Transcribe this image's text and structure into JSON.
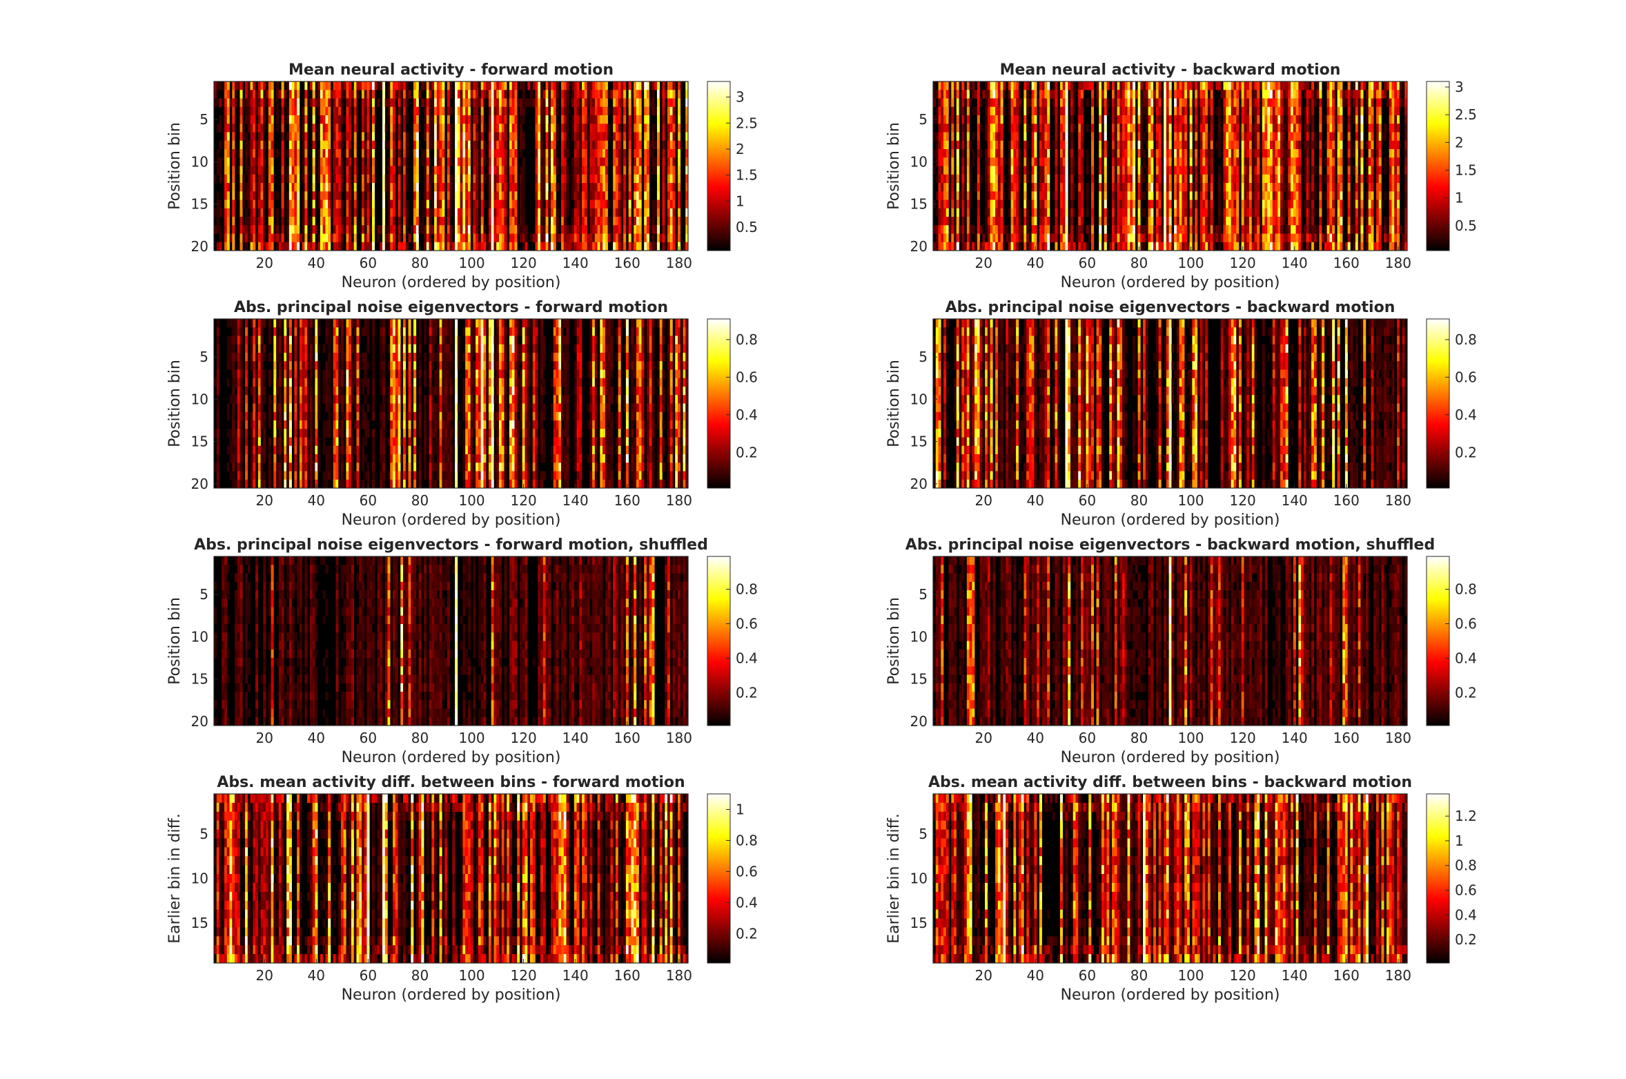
{
  "figure": {
    "colormap": "hot",
    "colormap_stops": [
      "#000000",
      "#ff0000",
      "#ffff00",
      "#ffffff"
    ]
  },
  "chart_data": [
    {
      "type": "heatmap",
      "title": "Mean neural activity - forward motion",
      "xlabel": "Neuron (ordered by position)",
      "ylabel": "Position bin",
      "x_range": [
        1,
        183
      ],
      "y_range": [
        1,
        20
      ],
      "x_ticks": [
        20,
        40,
        60,
        80,
        100,
        120,
        140,
        160,
        180
      ],
      "y_ticks": [
        5,
        10,
        15,
        20
      ],
      "colorbar_range": [
        0.05,
        3.3
      ],
      "colorbar_ticks": [
        0.5,
        1,
        1.5,
        2,
        2.5,
        3
      ],
      "colorbar_labels": [
        "0.5",
        "1",
        "1.5",
        "2",
        "2.5",
        "3"
      ],
      "highlight_columns": [
        94,
        66,
        108
      ],
      "seed": 11,
      "density": 0.55,
      "edge_boost": "both"
    },
    {
      "type": "heatmap",
      "title": "Mean neural activity - backward motion",
      "xlabel": "Neuron (ordered by position)",
      "ylabel": "Position bin",
      "x_range": [
        1,
        183
      ],
      "y_range": [
        1,
        20
      ],
      "x_ticks": [
        20,
        40,
        60,
        80,
        100,
        120,
        140,
        160,
        180
      ],
      "y_ticks": [
        5,
        10,
        15,
        20
      ],
      "colorbar_range": [
        0.05,
        3.1
      ],
      "colorbar_ticks": [
        0.5,
        1,
        1.5,
        2,
        2.5,
        3
      ],
      "colorbar_labels": [
        "0.5",
        "1",
        "1.5",
        "2",
        "2.5",
        "3"
      ],
      "highlight_columns": [
        52,
        90
      ],
      "seed": 23,
      "density": 0.58,
      "edge_boost": "both"
    },
    {
      "type": "heatmap",
      "title": "Abs. principal noise eigenvectors - forward motion",
      "xlabel": "Neuron (ordered by position)",
      "ylabel": "Position bin",
      "x_range": [
        1,
        183
      ],
      "y_range": [
        1,
        20
      ],
      "x_ticks": [
        20,
        40,
        60,
        80,
        100,
        120,
        140,
        160,
        180
      ],
      "y_ticks": [
        5,
        10,
        15,
        20
      ],
      "colorbar_range": [
        0.01,
        0.91
      ],
      "colorbar_ticks": [
        0.2,
        0.4,
        0.6,
        0.8
      ],
      "colorbar_labels": [
        "0.2",
        "0.4",
        "0.6",
        "0.8"
      ],
      "highlight_columns": [
        94,
        108,
        104
      ],
      "seed": 37,
      "density": 0.35,
      "edge_boost": "none"
    },
    {
      "type": "heatmap",
      "title": "Abs. principal noise eigenvectors - backward motion",
      "xlabel": "Neuron (ordered by position)",
      "ylabel": "Position bin",
      "x_range": [
        1,
        183
      ],
      "y_range": [
        1,
        20
      ],
      "x_ticks": [
        20,
        40,
        60,
        80,
        100,
        120,
        140,
        160,
        180
      ],
      "y_ticks": [
        5,
        10,
        15,
        20
      ],
      "colorbar_range": [
        0.01,
        0.91
      ],
      "colorbar_ticks": [
        0.2,
        0.4,
        0.6,
        0.8
      ],
      "colorbar_labels": [
        "0.2",
        "0.4",
        "0.6",
        "0.8"
      ],
      "highlight_columns": [
        52,
        92
      ],
      "seed": 41,
      "density": 0.38,
      "edge_boost": "none"
    },
    {
      "type": "heatmap",
      "title": "Abs. principal noise eigenvectors - forward motion, shuffled",
      "xlabel": "Neuron (ordered by position)",
      "ylabel": "Position bin",
      "x_range": [
        1,
        183
      ],
      "y_range": [
        1,
        20
      ],
      "x_ticks": [
        20,
        40,
        60,
        80,
        100,
        120,
        140,
        160,
        180
      ],
      "y_ticks": [
        5,
        10,
        15,
        20
      ],
      "colorbar_range": [
        0.01,
        0.99
      ],
      "colorbar_ticks": [
        0.2,
        0.4,
        0.6,
        0.8
      ],
      "colorbar_labels": [
        "0.2",
        "0.4",
        "0.6",
        "0.8"
      ],
      "highlight_columns": [
        94
      ],
      "seed": 53,
      "density": 0.12,
      "edge_boost": "none"
    },
    {
      "type": "heatmap",
      "title": "Abs. principal noise eigenvectors - backward motion, shuffled",
      "xlabel": "Neuron (ordered by position)",
      "ylabel": "Position bin",
      "x_range": [
        1,
        183
      ],
      "y_range": [
        1,
        20
      ],
      "x_ticks": [
        20,
        40,
        60,
        80,
        100,
        120,
        140,
        160,
        180
      ],
      "y_ticks": [
        5,
        10,
        15,
        20
      ],
      "colorbar_range": [
        0.01,
        0.99
      ],
      "colorbar_ticks": [
        0.2,
        0.4,
        0.6,
        0.8
      ],
      "colorbar_labels": [
        "0.2",
        "0.4",
        "0.6",
        "0.8"
      ],
      "highlight_columns": [
        92
      ],
      "seed": 61,
      "density": 0.14,
      "edge_boost": "none"
    },
    {
      "type": "heatmap",
      "title": "Abs. mean activity diff. between bins - forward motion",
      "xlabel": "Neuron (ordered by position)",
      "ylabel": "Earlier bin in diff.",
      "x_range": [
        1,
        183
      ],
      "y_range": [
        1,
        19
      ],
      "x_ticks": [
        20,
        40,
        60,
        80,
        100,
        120,
        140,
        160,
        180
      ],
      "y_ticks": [
        5,
        10,
        15
      ],
      "colorbar_range": [
        0.01,
        1.1
      ],
      "colorbar_ticks": [
        0.2,
        0.4,
        0.6,
        0.8,
        1
      ],
      "colorbar_labels": [
        "0.2",
        "0.4",
        "0.6",
        "0.8",
        "1"
      ],
      "highlight_columns": [
        66,
        60
      ],
      "seed": 71,
      "density": 0.45,
      "edge_boost": "both"
    },
    {
      "type": "heatmap",
      "title": "Abs. mean activity diff. between bins - backward motion",
      "xlabel": "Neuron (ordered by position)",
      "ylabel": "Earlier bin in diff.",
      "x_range": [
        1,
        183
      ],
      "y_range": [
        1,
        19
      ],
      "x_ticks": [
        20,
        40,
        60,
        80,
        100,
        120,
        140,
        160,
        180
      ],
      "y_ticks": [
        5,
        10,
        15
      ],
      "colorbar_range": [
        0.01,
        1.38
      ],
      "colorbar_ticks": [
        0.2,
        0.4,
        0.6,
        0.8,
        1,
        1.2
      ],
      "colorbar_labels": [
        "0.2",
        "0.4",
        "0.6",
        "0.8",
        "1",
        "1.2"
      ],
      "highlight_columns": [
        28,
        82
      ],
      "seed": 83,
      "density": 0.42,
      "edge_boost": "both"
    }
  ]
}
